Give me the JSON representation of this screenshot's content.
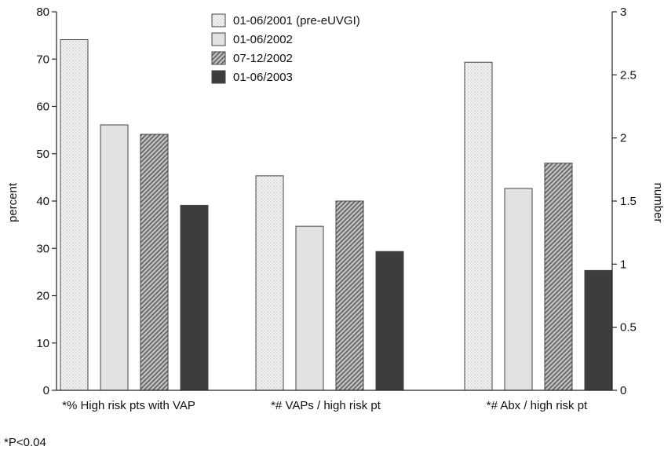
{
  "chart_data": {
    "type": "bar",
    "categories": [
      "*% High risk pts with VAP",
      "*# VAPs / high risk pt",
      "*# Abx / high risk pt"
    ],
    "category_axis": [
      "left",
      "right",
      "right"
    ],
    "series": [
      {
        "name": "01-06/2001 (pre-eUVGI)",
        "values": [
          74.1,
          1.7,
          2.6
        ],
        "color": "#f1f1f1",
        "pattern": "dots"
      },
      {
        "name": "01-06/2002",
        "values": [
          56.1,
          1.3,
          1.6
        ],
        "color": "#e2e2e2",
        "pattern": "solid"
      },
      {
        "name": "07-12/2002",
        "values": [
          54.1,
          1.5,
          1.8
        ],
        "color": "#9a9a9a",
        "pattern": "hatch"
      },
      {
        "name": "01-06/2003",
        "values": [
          39.1,
          1.1,
          0.95
        ],
        "color": "#3d3d3d",
        "pattern": "solid"
      }
    ],
    "y_left": {
      "label": "percent",
      "range": [
        0,
        80
      ],
      "ticks": [
        "0",
        "10",
        "20",
        "30",
        "40",
        "50",
        "60",
        "70",
        "80"
      ]
    },
    "y_right": {
      "label": "number",
      "range": [
        0,
        3
      ],
      "ticks": [
        "0",
        "0.5",
        "1",
        "1.5",
        "2",
        "2.5",
        "3"
      ]
    },
    "legend_position": "top-center",
    "grid": false
  },
  "footnote": "*P<0.04"
}
